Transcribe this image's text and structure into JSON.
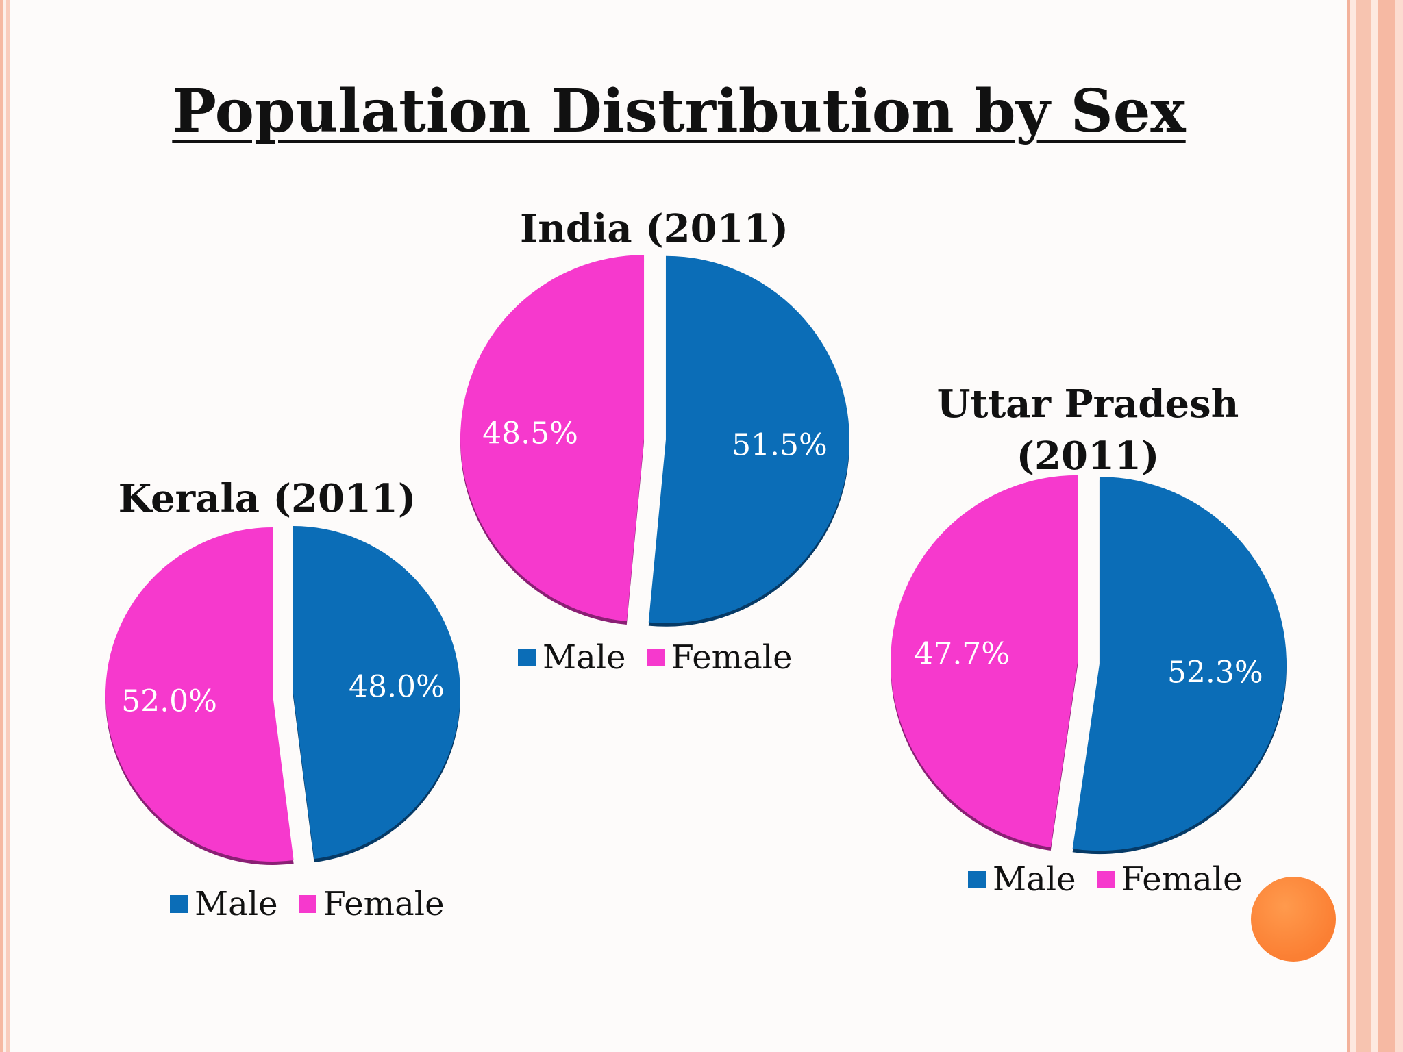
{
  "page": {
    "title": "Population Distribution by Sex"
  },
  "colors": {
    "male": "#0b6db7",
    "female": "#f639cd",
    "accent_circle": "#fb8538"
  },
  "chart_data": [
    {
      "type": "pie",
      "title": "India (2011)",
      "slices": [
        {
          "label": "Male",
          "value": 51.5,
          "display": "51.5%"
        },
        {
          "label": "Female",
          "value": 48.5,
          "display": "48.5%"
        }
      ],
      "legend": [
        "Male",
        "Female"
      ],
      "legend_position": "bottom"
    },
    {
      "type": "pie",
      "title": "Kerala (2011)",
      "slices": [
        {
          "label": "Male",
          "value": 48.0,
          "display": "48.0%"
        },
        {
          "label": "Female",
          "value": 52.0,
          "display": "52.0%"
        }
      ],
      "legend": [
        "Male",
        "Female"
      ],
      "legend_position": "bottom"
    },
    {
      "type": "pie",
      "title": "Uttar Pradesh\n(2011)",
      "slices": [
        {
          "label": "Male",
          "value": 52.3,
          "display": "52.3%"
        },
        {
          "label": "Female",
          "value": 47.7,
          "display": "47.7%"
        }
      ],
      "legend": [
        "Male",
        "Female"
      ],
      "legend_position": "bottom"
    }
  ]
}
